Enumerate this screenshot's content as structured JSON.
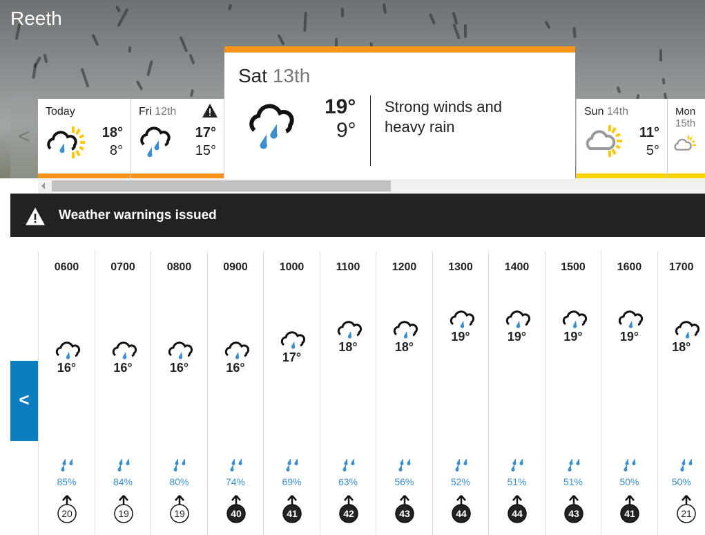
{
  "location": "Reeth",
  "colors": {
    "accent_orange": "#f7941d",
    "accent_yellow": "#ffd500",
    "rain_blue": "#3a8fcf",
    "nav_blue": "#0a7ebf",
    "warning_bar": "#222222"
  },
  "days": [
    {
      "name": "Today",
      "date": "",
      "high": "18°",
      "low": "8°",
      "icon": "sun-cloud-rain-icon",
      "bar": "#f7941d",
      "warning": false
    },
    {
      "name": "Fri",
      "date": "12th",
      "high": "17°",
      "low": "15°",
      "icon": "cloud-heavy-rain-icon",
      "bar": "#f7941d",
      "warning": true
    },
    {
      "name": "Sun",
      "date": "14th",
      "high": "11°",
      "low": "5°",
      "icon": "sun-cloud-icon",
      "bar": "#ffd500",
      "warning": false
    },
    {
      "name": "Mon",
      "date": "15th",
      "high": "",
      "low": "",
      "icon": "sun-cloud-icon",
      "bar": "#ffd500",
      "warning": false
    }
  ],
  "selected_day": {
    "name": "Sat",
    "date": "13th",
    "high": "19°",
    "low": "9°",
    "description": "Strong winds and heavy rain",
    "icon": "cloud-heavy-rain-icon"
  },
  "warning": {
    "text": "Weather warnings issued",
    "icon": "warning-triangle-icon"
  },
  "nav": {
    "back_label": "<",
    "prev_label": "<"
  },
  "hours": [
    {
      "time": "0600",
      "temp": 16,
      "rain": "85%",
      "wind": 20
    },
    {
      "time": "0700",
      "temp": 16,
      "rain": "84%",
      "wind": 19
    },
    {
      "time": "0800",
      "temp": 16,
      "rain": "80%",
      "wind": 19
    },
    {
      "time": "0900",
      "temp": 16,
      "rain": "74%",
      "wind": 40
    },
    {
      "time": "1000",
      "temp": 17,
      "rain": "69%",
      "wind": 41
    },
    {
      "time": "1100",
      "temp": 18,
      "rain": "63%",
      "wind": 42
    },
    {
      "time": "1200",
      "temp": 18,
      "rain": "56%",
      "wind": 43
    },
    {
      "time": "1300",
      "temp": 19,
      "rain": "52%",
      "wind": 44
    },
    {
      "time": "1400",
      "temp": 19,
      "rain": "51%",
      "wind": 44
    },
    {
      "time": "1500",
      "temp": 19,
      "rain": "51%",
      "wind": 43
    },
    {
      "time": "1600",
      "temp": 19,
      "rain": "50%",
      "wind": 41
    },
    {
      "time": "1700",
      "temp": 18,
      "rain": "50%",
      "wind": 21
    }
  ]
}
